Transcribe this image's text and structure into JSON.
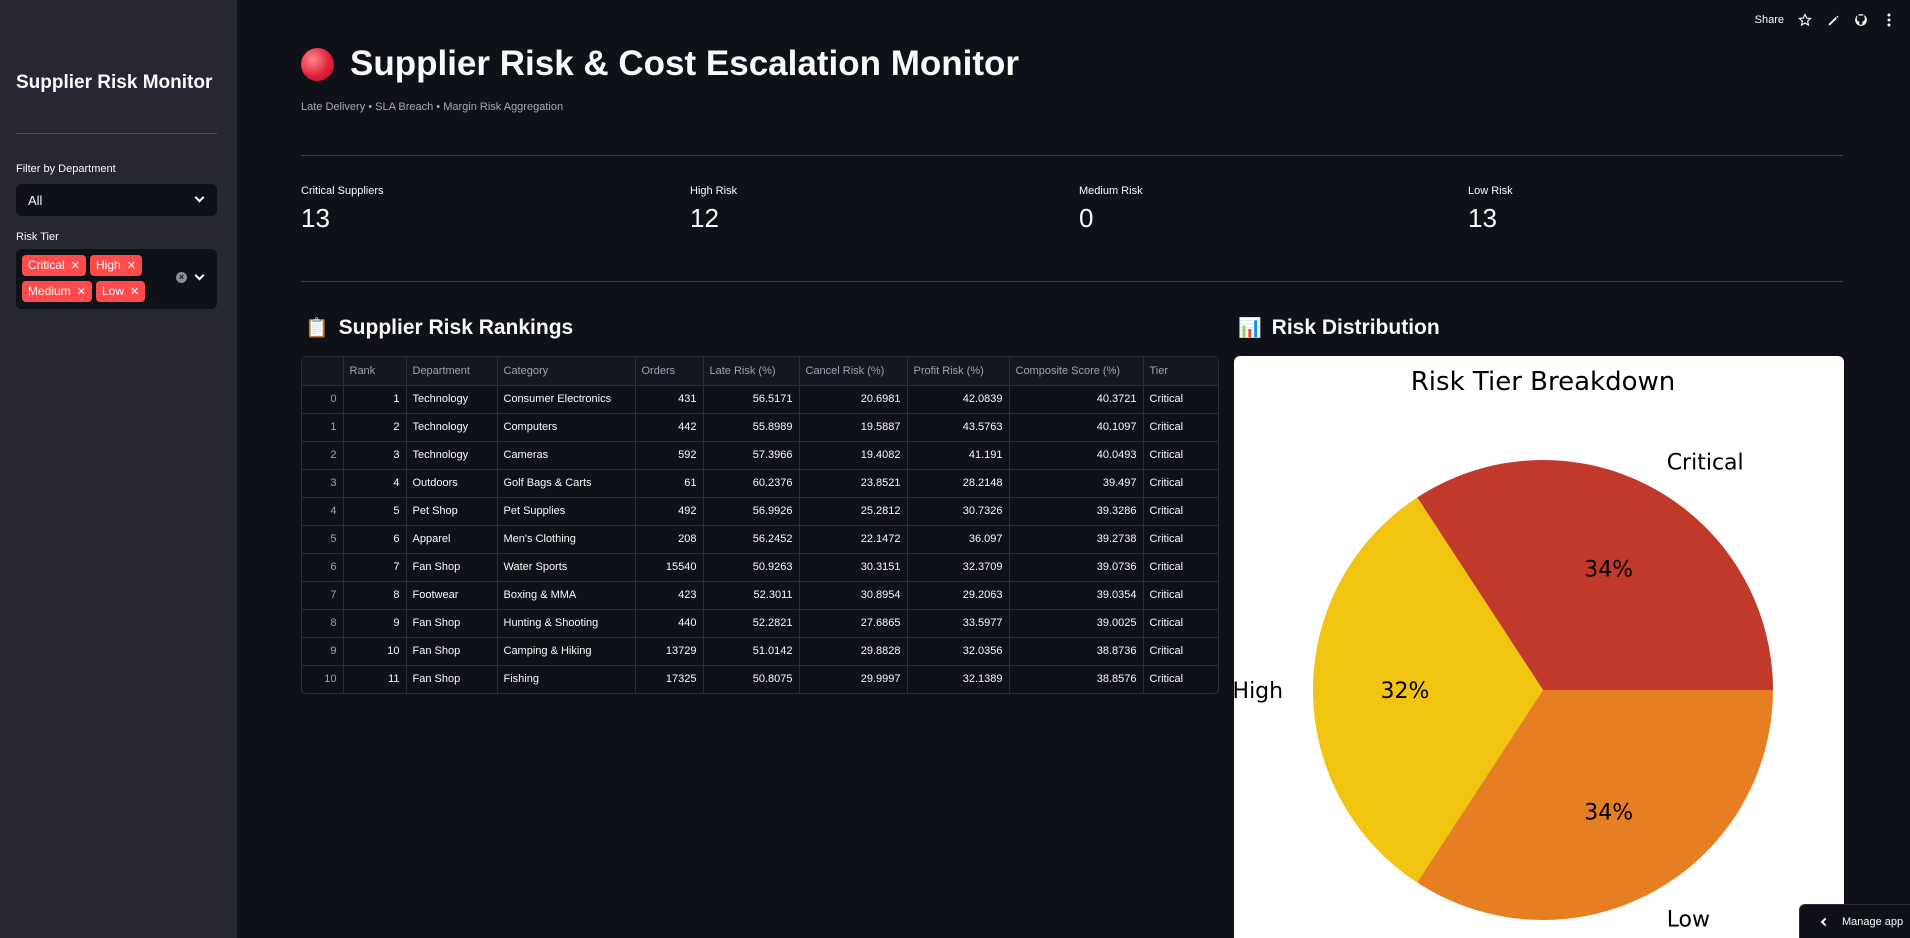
{
  "sidebar": {
    "title": "Supplier Risk Monitor",
    "department_label": "Filter by Department",
    "department_value": "All",
    "tier_label": "Risk Tier",
    "tier_tags": [
      "Critical",
      "High",
      "Medium",
      "Low"
    ]
  },
  "toolbar": {
    "share": "Share"
  },
  "header": {
    "title": "Supplier Risk & Cost Escalation Monitor",
    "subtitle": "Late Delivery • SLA Breach • Margin Risk Aggregation"
  },
  "metrics": [
    {
      "label": "Critical Suppliers",
      "value": "13"
    },
    {
      "label": "High Risk",
      "value": "12"
    },
    {
      "label": "Medium Risk",
      "value": "0"
    },
    {
      "label": "Low Risk",
      "value": "13"
    }
  ],
  "rankings": {
    "title": "Supplier Risk Rankings",
    "columns": [
      "",
      "Rank",
      "Department",
      "Category",
      "Orders",
      "Late Risk (%)",
      "Cancel Risk (%)",
      "Profit Risk (%)",
      "Composite Score (%)",
      "Tier"
    ],
    "rows": [
      [
        "0",
        "1",
        "Technology",
        "Consumer Electronics",
        "431",
        "56.5171",
        "20.6981",
        "42.0839",
        "40.3721",
        "Critical"
      ],
      [
        "1",
        "2",
        "Technology",
        "Computers",
        "442",
        "55.8989",
        "19.5887",
        "43.5763",
        "40.1097",
        "Critical"
      ],
      [
        "2",
        "3",
        "Technology",
        "Cameras",
        "592",
        "57.3966",
        "19.4082",
        "41.191",
        "40.0493",
        "Critical"
      ],
      [
        "3",
        "4",
        "Outdoors",
        "Golf Bags & Carts",
        "61",
        "60.2376",
        "23.8521",
        "28.2148",
        "39.497",
        "Critical"
      ],
      [
        "4",
        "5",
        "Pet Shop",
        "Pet Supplies",
        "492",
        "56.9926",
        "25.2812",
        "30.7326",
        "39.3286",
        "Critical"
      ],
      [
        "5",
        "6",
        "Apparel",
        "Men's Clothing",
        "208",
        "56.2452",
        "22.1472",
        "36.097",
        "39.2738",
        "Critical"
      ],
      [
        "6",
        "7",
        "Fan Shop",
        "Water Sports",
        "15540",
        "50.9263",
        "30.3151",
        "32.3709",
        "39.0736",
        "Critical"
      ],
      [
        "7",
        "8",
        "Footwear",
        "Boxing & MMA",
        "423",
        "52.3011",
        "30.8954",
        "29.2063",
        "39.0354",
        "Critical"
      ],
      [
        "8",
        "9",
        "Fan Shop",
        "Hunting & Shooting",
        "440",
        "52.2821",
        "27.6865",
        "33.5977",
        "39.0025",
        "Critical"
      ],
      [
        "9",
        "10",
        "Fan Shop",
        "Camping & Hiking",
        "13729",
        "51.0142",
        "29.8828",
        "32.0356",
        "38.8736",
        "Critical"
      ],
      [
        "10",
        "11",
        "Fan Shop",
        "Fishing",
        "17325",
        "50.8075",
        "29.9997",
        "32.1389",
        "38.8576",
        "Critical"
      ]
    ]
  },
  "distribution": {
    "title": "Risk Distribution"
  },
  "chart_data": {
    "type": "pie",
    "title": "Risk Tier Breakdown",
    "slices": [
      {
        "label": "Critical",
        "value": 13,
        "pct_label": "34%",
        "color": "#c0392b"
      },
      {
        "label": "High",
        "value": 12,
        "pct_label": "32%",
        "color": "#f1c40f"
      },
      {
        "label": "Low",
        "value": 13,
        "pct_label": "34%",
        "color": "#e67e22"
      }
    ]
  },
  "footer": {
    "manage_app": "Manage app"
  }
}
